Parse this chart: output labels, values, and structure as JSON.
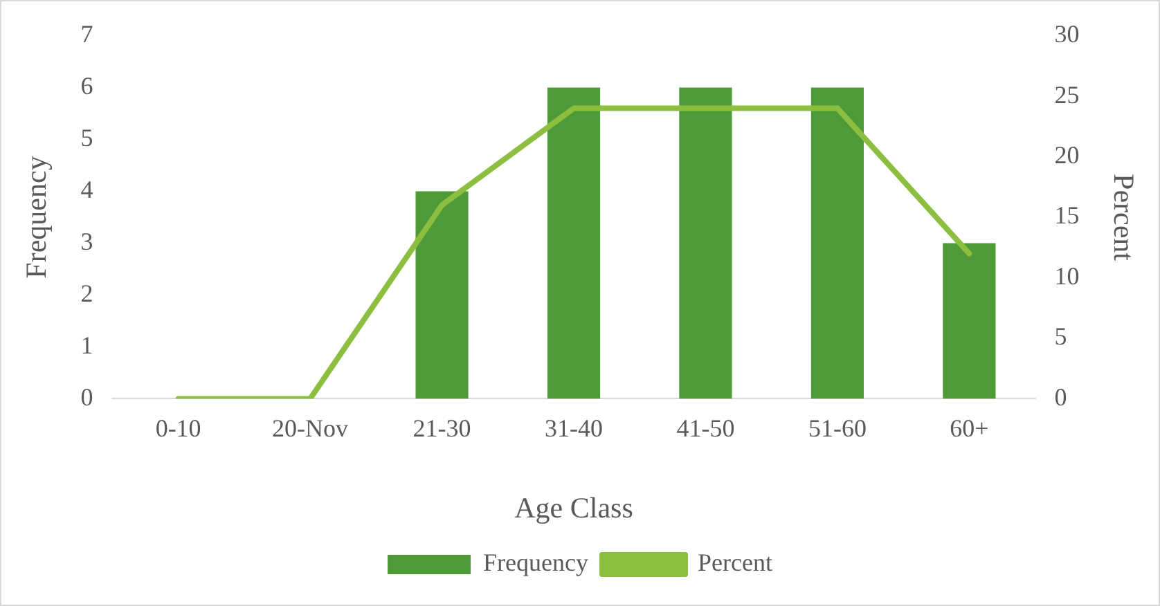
{
  "chart_data": {
    "type": "bar",
    "xlabel": "Age Class",
    "ylabel": "Frequency",
    "y2label": "Percent",
    "categories": [
      "0-10",
      "20-Nov",
      "21-30",
      "31-40",
      "41-50",
      "51-60",
      "60+"
    ],
    "series": [
      {
        "name": "Frequency",
        "color": "#4f9a38",
        "values": [
          0,
          0,
          4,
          6,
          6,
          6,
          3
        ]
      },
      {
        "name": "Percent",
        "type": "line",
        "axis": "y2",
        "color": "#8cbf3f",
        "values": [
          0,
          0,
          16,
          24,
          24,
          24,
          12
        ]
      }
    ],
    "ylim": [
      0,
      7
    ],
    "yticks": [
      0,
      1,
      2,
      3,
      4,
      5,
      6,
      7
    ],
    "y2lim": [
      0,
      30
    ],
    "y2ticks": [
      0,
      5,
      10,
      15,
      20,
      25,
      30
    ],
    "grid": false,
    "legend": "bottom",
    "marker": "none",
    "line_style": "solid"
  }
}
